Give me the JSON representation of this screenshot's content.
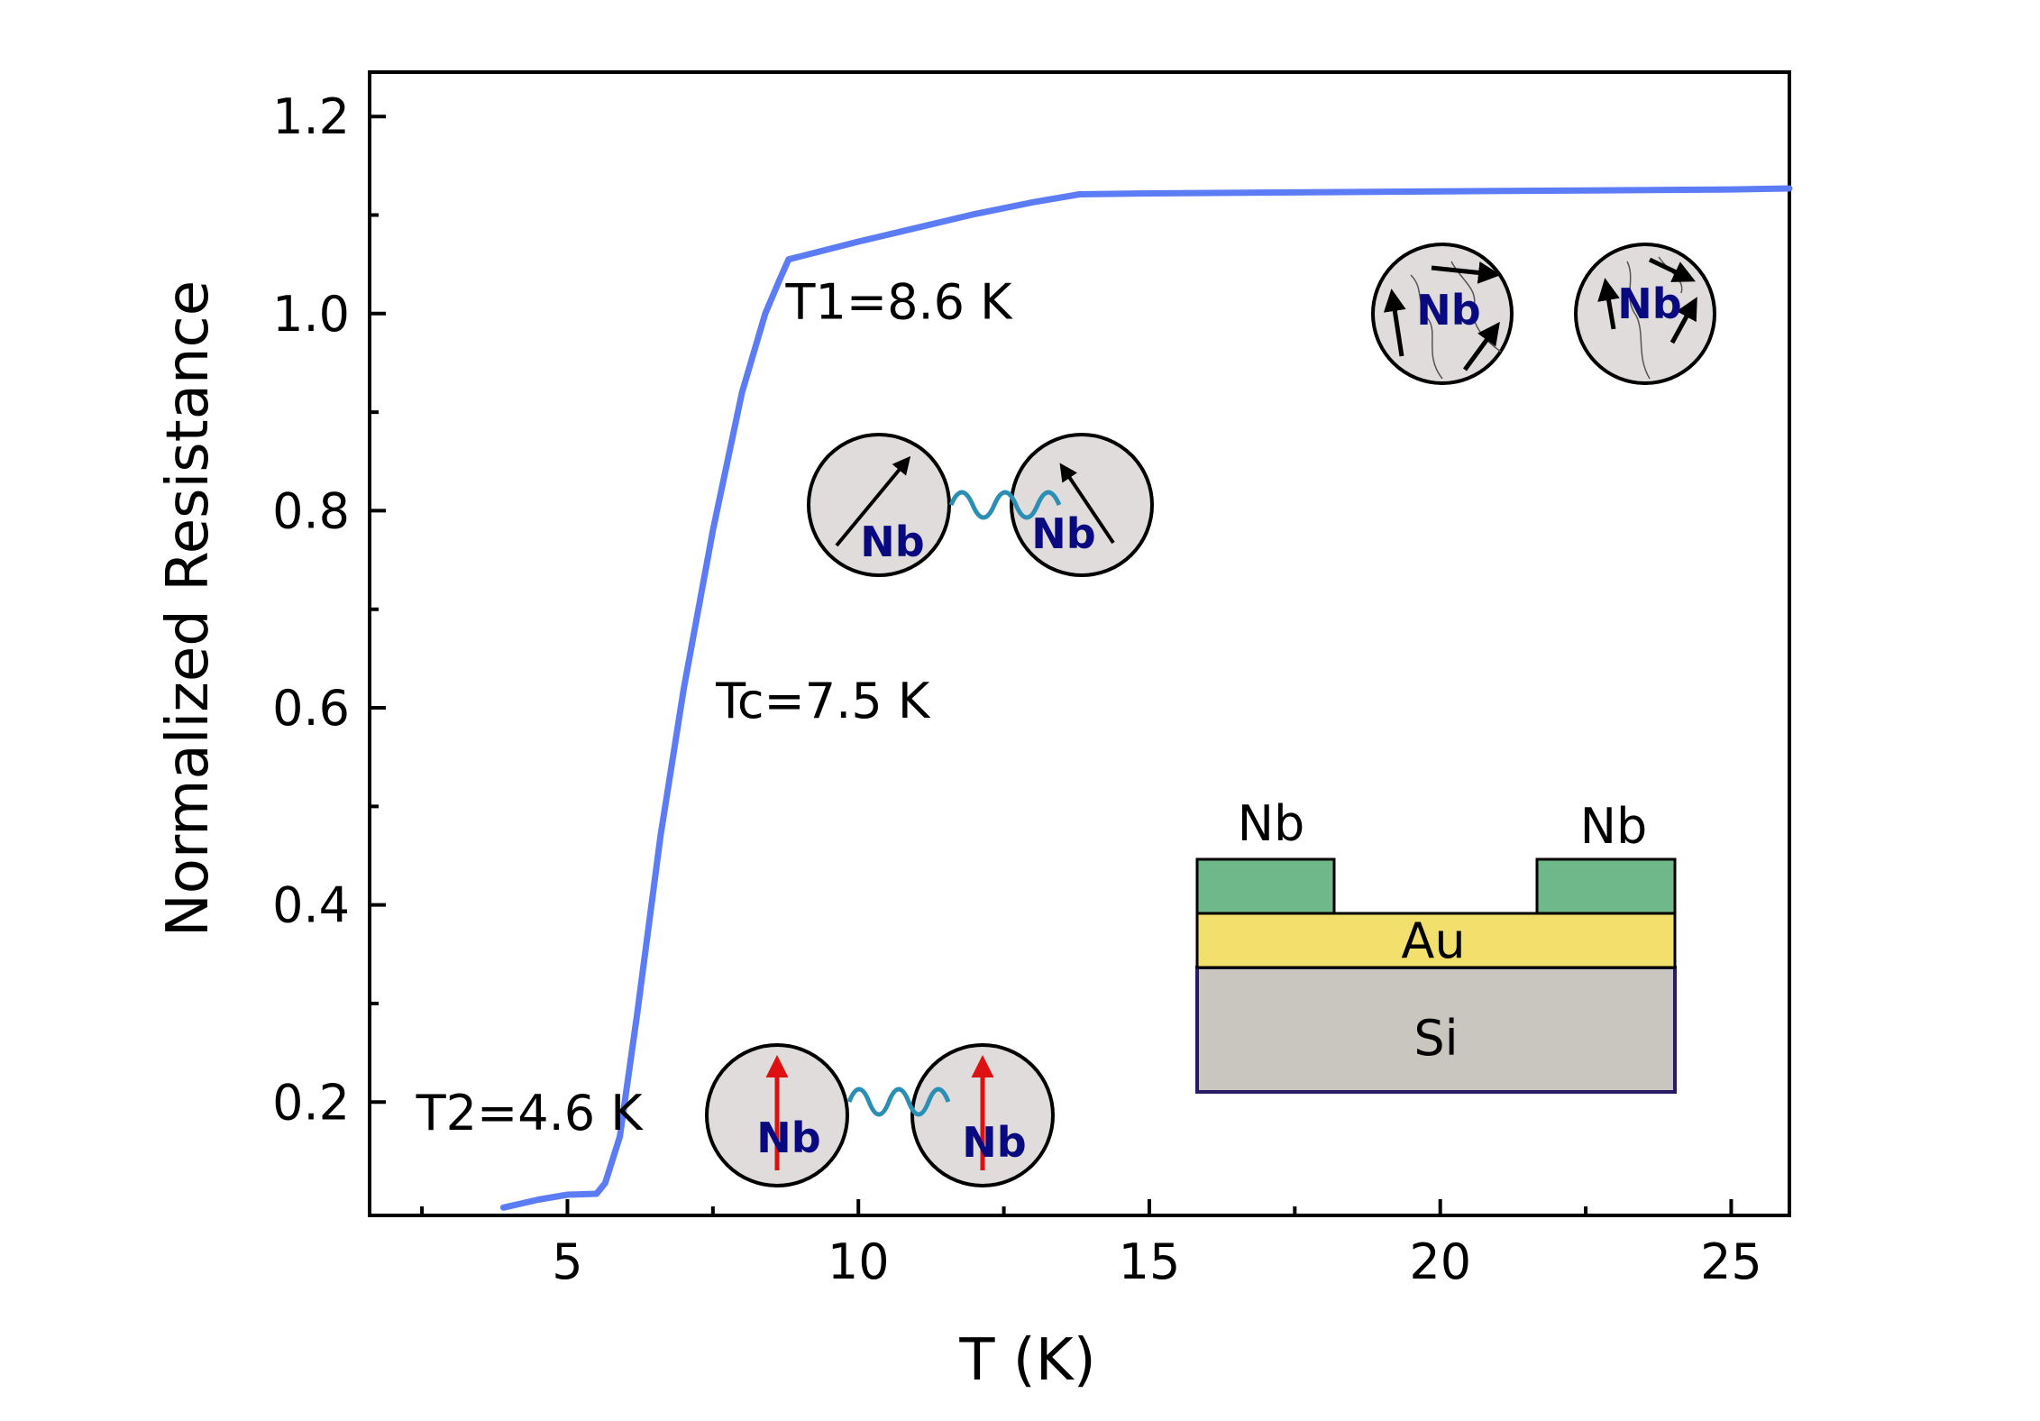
{
  "chart_data": {
    "type": "line",
    "xlabel": "T (K)",
    "ylabel": "Normalized Resistance",
    "xlim": [
      1.6,
      26.0
    ],
    "ylim": [
      0.085,
      1.245
    ],
    "xticks": [
      5,
      10,
      15,
      20,
      25
    ],
    "yticks": [
      0.2,
      0.4,
      0.6,
      0.8,
      1.0,
      1.2
    ],
    "xtick_labels": [
      "5",
      "10",
      "15",
      "20",
      "25"
    ],
    "ytick_labels": [
      "0.2",
      "0.4",
      "0.6",
      "0.8",
      "1.0",
      "1.2"
    ],
    "line_color": "#5b7cf5",
    "series": [
      {
        "x": [
          3.9,
          4.5,
          5.0,
          5.5,
          5.65,
          5.9,
          6.2,
          6.6,
          7.0,
          7.5,
          8.0,
          8.4,
          8.65,
          8.8,
          9.0,
          10.0,
          11.0,
          12.0,
          13.0,
          13.8,
          15.0,
          17.5,
          20.0,
          22.5,
          25.0,
          26.0
        ],
        "y": [
          0.093,
          0.101,
          0.106,
          0.107,
          0.118,
          0.165,
          0.29,
          0.47,
          0.62,
          0.78,
          0.92,
          1.0,
          1.035,
          1.055,
          1.058,
          1.073,
          1.087,
          1.101,
          1.113,
          1.121,
          1.122,
          1.123,
          1.124,
          1.125,
          1.126,
          1.127
        ]
      }
    ],
    "annotations": [
      {
        "text": "T1=8.6 K",
        "x": 8.75,
        "y": 0.995
      },
      {
        "text": "Tc=7.5 K",
        "x": 7.55,
        "y": 0.59
      },
      {
        "text": "T2=4.6 K",
        "x": 2.4,
        "y": 0.172
      }
    ]
  },
  "insets": {
    "grain_label": "Nb",
    "stack": {
      "left_label": "Nb",
      "right_label": "Nb",
      "middle_label": "Au",
      "bottom_label": "Si",
      "nb_color": "#6fb88a",
      "au_color": "#f3df6b",
      "si_color": "#c9c5bf",
      "border_color": "#2a1a66"
    },
    "grain_color": "#e0dcdc",
    "wave_color": "#2b8fb5",
    "spin_up_color": "#dd1111"
  }
}
